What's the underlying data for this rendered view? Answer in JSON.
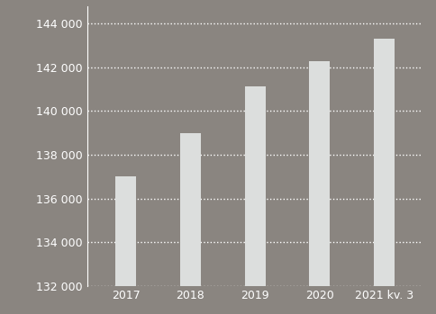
{
  "chart_data": {
    "type": "bar",
    "categories": [
      "2017",
      "2018",
      "2019",
      "2020",
      "2021 kv. 3"
    ],
    "values": [
      137000,
      139000,
      141150,
      142300,
      143300
    ],
    "color": "#dcdedd",
    "ylim": [
      132000,
      144800
    ],
    "yticks": [
      {
        "value": 132000,
        "label": "132 000"
      },
      {
        "value": 134000,
        "label": "134 000"
      },
      {
        "value": 136000,
        "label": "136 000"
      },
      {
        "value": 138000,
        "label": "138 000"
      },
      {
        "value": 140000,
        "label": "140 000"
      },
      {
        "value": 142000,
        "label": "142 000"
      },
      {
        "value": 144000,
        "label": "144 000"
      }
    ],
    "grid": true
  }
}
